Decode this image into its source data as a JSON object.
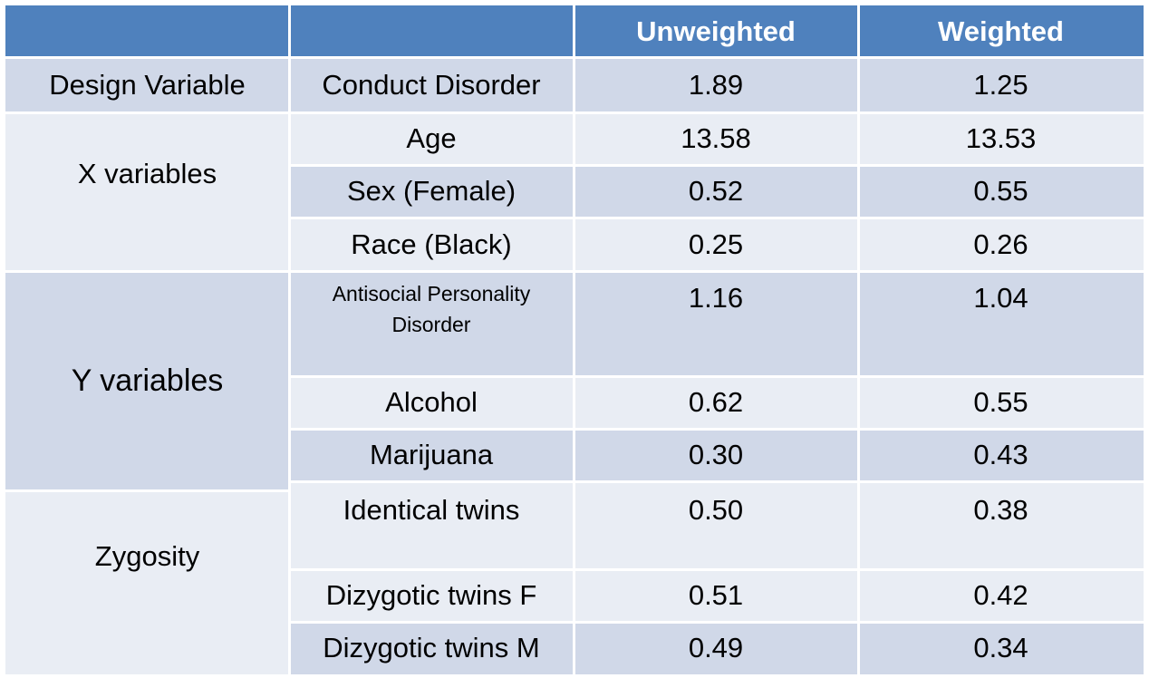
{
  "table": {
    "headers": [
      "",
      "",
      "Unweighted",
      "Weighted"
    ],
    "groups": {
      "design": "Design Variable",
      "x": "X variables",
      "y": "Y variables",
      "zygosity": "Zygosity"
    },
    "rows": [
      {
        "label": "Conduct Disorder",
        "unweighted": "1.89",
        "weighted": "1.25"
      },
      {
        "label": "Age",
        "unweighted": "13.58",
        "weighted": "13.53"
      },
      {
        "label": "Sex (Female)",
        "unweighted": "0.52",
        "weighted": "0.55"
      },
      {
        "label": "Race (Black)",
        "unweighted": "0.25",
        "weighted": "0.26"
      },
      {
        "label": "Antisocial Personality Disorder",
        "unweighted": "1.16",
        "weighted": "1.04"
      },
      {
        "label": "Alcohol",
        "unweighted": "0.62",
        "weighted": "0.55"
      },
      {
        "label": "Marijuana",
        "unweighted": "0.30",
        "weighted": "0.43"
      },
      {
        "label": "Identical twins",
        "unweighted": "0.50",
        "weighted": "0.38"
      },
      {
        "label": "Dizygotic twins F",
        "unweighted": "0.51",
        "weighted": "0.42"
      },
      {
        "label": "Dizygotic twins M",
        "unweighted": "0.49",
        "weighted": "0.34"
      }
    ]
  }
}
